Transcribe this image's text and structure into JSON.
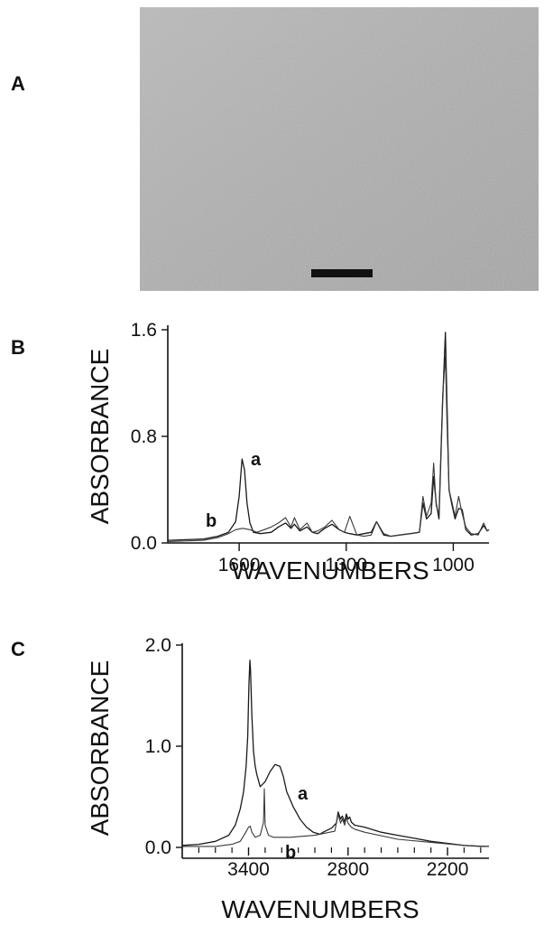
{
  "figure": {
    "panels": {
      "a": "A",
      "b": "B",
      "c": "C"
    }
  },
  "micrograph": {
    "scale_bar": true
  },
  "chart_data": [
    {
      "type": "line",
      "ylabel": "ABSORBANCE",
      "xlabel": "WAVENUMBERS",
      "xlim": [
        1800,
        900
      ],
      "ylim": [
        0,
        1.6
      ],
      "x_ticks": [
        1600,
        1300,
        1000
      ],
      "y_ticks": [
        0.0,
        0.8,
        1.6
      ],
      "y_tick_labels": [
        "0.0",
        "0.8",
        "1.6"
      ],
      "grid": false,
      "series": [
        {
          "name": "a",
          "x": [
            1800,
            1700,
            1660,
            1630,
            1610,
            1600,
            1592,
            1585,
            1578,
            1570,
            1560,
            1540,
            1510,
            1490,
            1470,
            1455,
            1445,
            1430,
            1410,
            1395,
            1380,
            1360,
            1340,
            1320,
            1305,
            1290,
            1270,
            1250,
            1230,
            1215,
            1195,
            1175,
            1150,
            1120,
            1095,
            1085,
            1075,
            1062,
            1055,
            1048,
            1040,
            1030,
            1022,
            1018,
            1012,
            1005,
            995,
            985,
            975,
            965,
            950,
            930,
            915,
            905,
            900
          ],
          "y": [
            0.02,
            0.03,
            0.05,
            0.08,
            0.16,
            0.35,
            0.63,
            0.55,
            0.3,
            0.15,
            0.08,
            0.07,
            0.08,
            0.12,
            0.15,
            0.11,
            0.14,
            0.09,
            0.12,
            0.08,
            0.07,
            0.11,
            0.14,
            0.1,
            0.08,
            0.07,
            0.06,
            0.07,
            0.08,
            0.16,
            0.06,
            0.05,
            0.06,
            0.07,
            0.08,
            0.3,
            0.18,
            0.22,
            0.5,
            0.3,
            0.18,
            1.05,
            1.58,
            1.1,
            0.4,
            0.3,
            0.18,
            0.26,
            0.25,
            0.1,
            0.06,
            0.07,
            0.13,
            0.09,
            0.1
          ]
        },
        {
          "name": "b",
          "x": [
            1800,
            1700,
            1660,
            1630,
            1610,
            1590,
            1570,
            1550,
            1530,
            1510,
            1490,
            1470,
            1455,
            1445,
            1430,
            1410,
            1395,
            1380,
            1360,
            1340,
            1320,
            1305,
            1290,
            1270,
            1250,
            1230,
            1215,
            1195,
            1175,
            1150,
            1120,
            1095,
            1085,
            1075,
            1062,
            1055,
            1048,
            1040,
            1030,
            1022,
            1018,
            1012,
            1005,
            995,
            985,
            975,
            965,
            950,
            930,
            915,
            905,
            900
          ],
          "y": [
            0.01,
            0.02,
            0.04,
            0.07,
            0.1,
            0.11,
            0.1,
            0.08,
            0.1,
            0.12,
            0.15,
            0.19,
            0.12,
            0.19,
            0.1,
            0.15,
            0.08,
            0.09,
            0.12,
            0.17,
            0.1,
            0.08,
            0.2,
            0.06,
            0.05,
            0.06,
            0.16,
            0.07,
            0.05,
            0.06,
            0.07,
            0.08,
            0.35,
            0.2,
            0.3,
            0.6,
            0.28,
            0.22,
            1.1,
            1.4,
            0.95,
            0.4,
            0.32,
            0.2,
            0.35,
            0.22,
            0.12,
            0.07,
            0.06,
            0.15,
            0.09,
            0.1
          ]
        }
      ]
    },
    {
      "type": "line",
      "ylabel": "ABSORBANCE",
      "xlabel": "WAVENUMBERS",
      "xlim": [
        3800,
        1950
      ],
      "ylim": [
        0,
        2.0
      ],
      "x_ticks": [
        3400,
        2800,
        2200
      ],
      "y_ticks": [
        0.0,
        1.0,
        2.0
      ],
      "y_tick_labels": [
        "0.0",
        "1.0",
        "2.0"
      ],
      "minor_x_ticks": [
        3700,
        3600,
        3500,
        3300,
        3200,
        3100,
        3000,
        2900,
        2700,
        2600,
        2500,
        2400,
        2300,
        2100,
        2000
      ],
      "grid": false,
      "series": [
        {
          "name": "a",
          "x": [
            3800,
            3700,
            3600,
            3520,
            3480,
            3450,
            3430,
            3415,
            3405,
            3398,
            3392,
            3388,
            3380,
            3370,
            3360,
            3350,
            3330,
            3300,
            3270,
            3240,
            3210,
            3190,
            3170,
            3130,
            3090,
            3050,
            3010,
            2970,
            2950,
            2900,
            2870,
            2860,
            2845,
            2835,
            2820,
            2810,
            2800,
            2790,
            2780,
            2760,
            2700,
            2600,
            2500,
            2400,
            2300,
            2200,
            2100,
            2000,
            1950
          ],
          "y": [
            0.02,
            0.03,
            0.06,
            0.12,
            0.22,
            0.38,
            0.55,
            0.8,
            1.1,
            1.6,
            1.85,
            1.75,
            1.3,
            0.95,
            0.8,
            0.72,
            0.6,
            0.65,
            0.75,
            0.82,
            0.8,
            0.7,
            0.55,
            0.4,
            0.28,
            0.2,
            0.15,
            0.13,
            0.15,
            0.19,
            0.24,
            0.35,
            0.28,
            0.31,
            0.25,
            0.33,
            0.28,
            0.3,
            0.25,
            0.22,
            0.2,
            0.15,
            0.12,
            0.09,
            0.06,
            0.04,
            0.02,
            0.01,
            0.01
          ]
        },
        {
          "name": "b",
          "x": [
            3800,
            3600,
            3500,
            3450,
            3420,
            3400,
            3390,
            3380,
            3360,
            3330,
            3310,
            3305,
            3300,
            3280,
            3250,
            3150,
            3000,
            2880,
            2860,
            2845,
            2835,
            2820,
            2810,
            2800,
            2790,
            2780,
            2760,
            2700,
            2500,
            2300,
            2100,
            1950
          ],
          "y": [
            0.01,
            0.01,
            0.03,
            0.06,
            0.14,
            0.2,
            0.21,
            0.15,
            0.1,
            0.12,
            0.25,
            0.58,
            0.22,
            0.12,
            0.1,
            0.1,
            0.12,
            0.16,
            0.33,
            0.24,
            0.28,
            0.22,
            0.3,
            0.24,
            0.22,
            0.2,
            0.18,
            0.15,
            0.08,
            0.05,
            0.02,
            0.01
          ]
        }
      ]
    }
  ]
}
